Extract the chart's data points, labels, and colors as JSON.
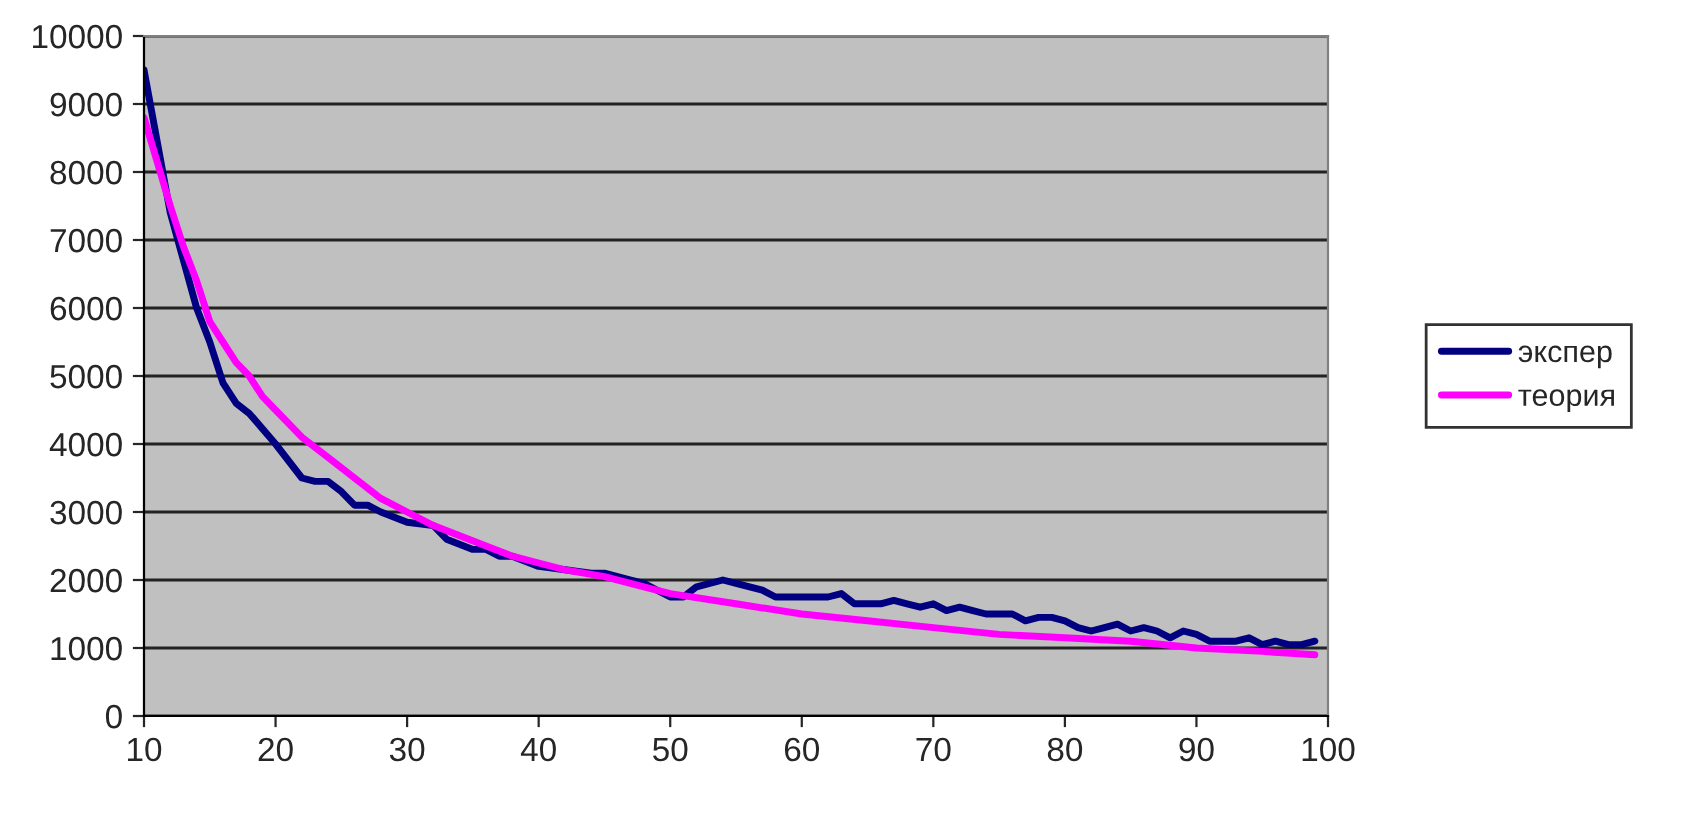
{
  "chart_data": {
    "type": "line",
    "xlim": [
      10,
      100
    ],
    "xticks": [
      10,
      20,
      30,
      40,
      50,
      60,
      70,
      80,
      90,
      100
    ],
    "ylim": [
      0,
      10000
    ],
    "yticks": [
      0,
      1000,
      2000,
      3000,
      4000,
      5000,
      6000,
      7000,
      8000,
      9000,
      10000
    ],
    "grid": "y",
    "legend": "right",
    "marker": "none",
    "line_style": "solid",
    "series": [
      {
        "name": "экспер",
        "color": "#000080",
        "x": [
          10,
          12,
          14,
          15,
          16,
          17,
          18,
          20,
          22,
          23,
          24,
          25,
          26,
          27,
          28,
          30,
          32,
          33,
          35,
          36,
          37,
          38,
          40,
          42,
          44,
          45,
          47,
          48,
          50,
          51,
          52,
          54,
          55,
          57,
          58,
          60,
          62,
          63,
          64,
          66,
          67,
          68,
          69,
          70,
          71,
          72,
          73,
          74,
          75,
          76,
          77,
          78,
          79,
          80,
          81,
          82,
          83,
          84,
          85,
          86,
          87,
          88,
          89,
          90,
          91,
          92,
          93,
          94,
          95,
          96,
          97,
          98,
          99
        ],
        "values": [
          9500,
          7400,
          6000,
          5500,
          4900,
          4600,
          4450,
          4000,
          3500,
          3450,
          3450,
          3300,
          3100,
          3100,
          3000,
          2850,
          2800,
          2600,
          2450,
          2450,
          2350,
          2350,
          2200,
          2150,
          2100,
          2100,
          2000,
          1950,
          1750,
          1750,
          1900,
          2000,
          1950,
          1850,
          1750,
          1750,
          1750,
          1800,
          1650,
          1650,
          1700,
          1650,
          1600,
          1650,
          1550,
          1600,
          1550,
          1500,
          1500,
          1500,
          1400,
          1450,
          1450,
          1400,
          1300,
          1250,
          1300,
          1350,
          1250,
          1300,
          1250,
          1150,
          1250,
          1200,
          1100,
          1100,
          1100,
          1150,
          1050,
          1100,
          1050,
          1050,
          1100
        ]
      },
      {
        "name": "теория",
        "color": "#ff00ff",
        "x": [
          10,
          12,
          13,
          14,
          15,
          16,
          17,
          18,
          19,
          20,
          22,
          24,
          26,
          28,
          30,
          32,
          34,
          36,
          38,
          40,
          42,
          45,
          48,
          50,
          55,
          60,
          65,
          70,
          75,
          80,
          85,
          90,
          95,
          99
        ],
        "values": [
          8800,
          7500,
          6900,
          6400,
          5800,
          5500,
          5200,
          5000,
          4700,
          4500,
          4100,
          3800,
          3500,
          3200,
          3000,
          2800,
          2650,
          2500,
          2350,
          2250,
          2150,
          2050,
          1900,
          1800,
          1650,
          1500,
          1400,
          1300,
          1200,
          1150,
          1100,
          1000,
          950,
          900
        ]
      }
    ]
  }
}
